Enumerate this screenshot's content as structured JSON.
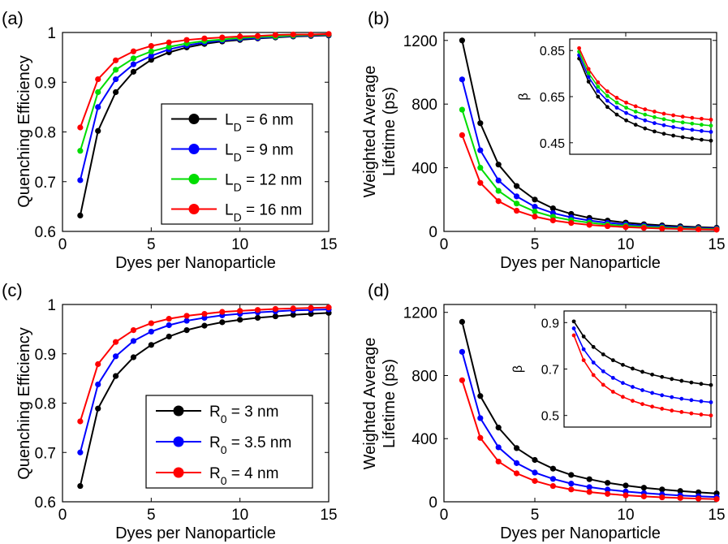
{
  "chart_data": [
    {
      "type": "line",
      "panel_label": "(a)",
      "xlabel": "Dyes per Nanoparticle",
      "ylabel_lines": [
        "Quenching Efficiency"
      ],
      "xlim": [
        0,
        15
      ],
      "ylim": [
        0.6,
        1
      ],
      "xticks": [
        0,
        5,
        10,
        15
      ],
      "xtick_labels": [
        "0",
        "5",
        "10",
        "15"
      ],
      "yticks": [
        0.6,
        0.7,
        0.8,
        0.9,
        1
      ],
      "ytick_labels": [
        "0.6",
        "0.7",
        "0.8",
        "0.9",
        "1"
      ],
      "legend_position": "center-right",
      "x": [
        1,
        2,
        3,
        4,
        5,
        6,
        7,
        8,
        9,
        10,
        11,
        12,
        13,
        14,
        15
      ],
      "series": [
        {
          "name": "L_D = 6 nm",
          "label_main": "L",
          "label_sub": "D",
          "label_rest": " = 6 nm",
          "color": "#000000",
          "values": [
            0.632,
            0.802,
            0.88,
            0.921,
            0.945,
            0.96,
            0.97,
            0.977,
            0.982,
            0.985,
            0.988,
            0.99,
            0.992,
            0.993,
            0.994
          ]
        },
        {
          "name": "L_D = 9 nm",
          "label_main": "L",
          "label_sub": "D",
          "label_rest": " = 9 nm",
          "color": "#0000ff",
          "values": [
            0.703,
            0.85,
            0.906,
            0.936,
            0.953,
            0.966,
            0.974,
            0.98,
            0.984,
            0.987,
            0.989,
            0.991,
            0.993,
            0.994,
            0.995
          ]
        },
        {
          "name": "L_D = 12 nm",
          "label_main": "L",
          "label_sub": "D",
          "label_rest": " = 12 nm",
          "color": "#00dd00",
          "values": [
            0.762,
            0.88,
            0.925,
            0.948,
            0.962,
            0.971,
            0.978,
            0.983,
            0.986,
            0.989,
            0.991,
            0.992,
            0.994,
            0.995,
            0.996
          ]
        },
        {
          "name": "L_D = 16 nm",
          "label_main": "L",
          "label_sub": "D",
          "label_rest": " = 16 nm",
          "color": "#ff0000",
          "values": [
            0.809,
            0.906,
            0.944,
            0.962,
            0.973,
            0.98,
            0.985,
            0.988,
            0.99,
            0.992,
            0.993,
            0.995,
            0.996,
            0.996,
            0.997
          ]
        }
      ]
    },
    {
      "type": "line",
      "panel_label": "(b)",
      "xlabel": "Dyes per Nanoparticle",
      "ylabel_lines": [
        "Weighted Average",
        "Lifetime (ps)"
      ],
      "xlim": [
        0,
        15
      ],
      "ylim": [
        0,
        1250
      ],
      "xticks": [
        0,
        5,
        10,
        15
      ],
      "xtick_labels": [
        "0",
        "5",
        "10",
        "15"
      ],
      "yticks": [
        0,
        400,
        800,
        1200
      ],
      "ytick_labels": [
        "0",
        "400",
        "800",
        "1200"
      ],
      "x": [
        1,
        2,
        3,
        4,
        5,
        6,
        7,
        8,
        9,
        10,
        11,
        12,
        13,
        14,
        15
      ],
      "series": [
        {
          "name": "L_D = 6 nm",
          "color": "#000000",
          "values": [
            1200,
            680,
            420,
            285,
            200,
            145,
            110,
            85,
            68,
            55,
            45,
            38,
            32,
            27,
            23
          ]
        },
        {
          "name": "L_D = 9 nm",
          "color": "#0000ff",
          "values": [
            955,
            510,
            320,
            220,
            155,
            115,
            88,
            68,
            54,
            44,
            36,
            30,
            25,
            21,
            18
          ]
        },
        {
          "name": "L_D = 12 nm",
          "color": "#00dd00",
          "values": [
            765,
            400,
            255,
            175,
            125,
            92,
            70,
            55,
            43,
            35,
            29,
            24,
            20,
            17,
            14
          ]
        },
        {
          "name": "L_D = 16 nm",
          "color": "#ff0000",
          "values": [
            605,
            305,
            190,
            130,
            93,
            69,
            53,
            41,
            33,
            27,
            22,
            18,
            15,
            13,
            11
          ]
        }
      ],
      "inset": {
        "ylabel": "β",
        "xlim": [
          0,
          15
        ],
        "ylim": [
          0.4,
          0.9
        ],
        "yticks": [
          0.45,
          0.65,
          0.85
        ],
        "ytick_labels": [
          "0.45",
          "0.65",
          "0.85"
        ],
        "x": [
          1,
          2,
          3,
          4,
          5,
          6,
          7,
          8,
          9,
          10,
          11,
          12,
          13,
          14,
          15
        ],
        "series": [
          {
            "name": "L_D = 6 nm",
            "color": "#000000",
            "values": [
              0.815,
              0.715,
              0.65,
              0.605,
              0.572,
              0.547,
              0.528,
              0.512,
              0.499,
              0.489,
              0.481,
              0.474,
              0.468,
              0.463,
              0.459
            ]
          },
          {
            "name": "L_D = 9 nm",
            "color": "#0000ff",
            "values": [
              0.83,
              0.735,
              0.674,
              0.632,
              0.602,
              0.579,
              0.561,
              0.547,
              0.535,
              0.526,
              0.518,
              0.511,
              0.506,
              0.501,
              0.497
            ]
          },
          {
            "name": "L_D = 12 nm",
            "color": "#00dd00",
            "values": [
              0.845,
              0.752,
              0.693,
              0.653,
              0.624,
              0.602,
              0.585,
              0.572,
              0.561,
              0.552,
              0.544,
              0.538,
              0.533,
              0.528,
              0.524
            ]
          },
          {
            "name": "L_D = 16 nm",
            "color": "#ff0000",
            "values": [
              0.86,
              0.77,
              0.712,
              0.673,
              0.645,
              0.624,
              0.608,
              0.595,
              0.585,
              0.576,
              0.569,
              0.563,
              0.558,
              0.554,
              0.55
            ]
          }
        ]
      }
    },
    {
      "type": "line",
      "panel_label": "(c)",
      "xlabel": "Dyes per Nanoparticle",
      "ylabel_lines": [
        "Quenching Efficiency"
      ],
      "xlim": [
        0,
        15
      ],
      "ylim": [
        0.6,
        1
      ],
      "xticks": [
        0,
        5,
        10,
        15
      ],
      "xtick_labels": [
        "0",
        "5",
        "10",
        "15"
      ],
      "yticks": [
        0.6,
        0.7,
        0.8,
        0.9,
        1
      ],
      "ytick_labels": [
        "0.6",
        "0.7",
        "0.8",
        "0.9",
        "1"
      ],
      "legend_position": "bottom-right",
      "x": [
        1,
        2,
        3,
        4,
        5,
        6,
        7,
        8,
        9,
        10,
        11,
        12,
        13,
        14,
        15
      ],
      "series": [
        {
          "name": "R_0 = 3 nm",
          "label_main": "R",
          "label_sub": "0",
          "label_rest": " = 3 nm",
          "color": "#000000",
          "values": [
            0.632,
            0.789,
            0.855,
            0.893,
            0.918,
            0.935,
            0.948,
            0.957,
            0.964,
            0.969,
            0.973,
            0.976,
            0.979,
            0.981,
            0.983
          ]
        },
        {
          "name": "R_0 = 3.5 nm",
          "label_main": "R",
          "label_sub": "0",
          "label_rest": " = 3.5 nm",
          "color": "#0000ff",
          "values": [
            0.7,
            0.838,
            0.895,
            0.926,
            0.945,
            0.958,
            0.967,
            0.973,
            0.978,
            0.981,
            0.984,
            0.986,
            0.988,
            0.989,
            0.99
          ]
        },
        {
          "name": "R_0 = 4 nm",
          "label_main": "R",
          "label_sub": "0",
          "label_rest": " = 4 nm",
          "color": "#ff0000",
          "values": [
            0.763,
            0.879,
            0.924,
            0.948,
            0.962,
            0.971,
            0.977,
            0.981,
            0.985,
            0.987,
            0.989,
            0.991,
            0.992,
            0.993,
            0.994
          ]
        }
      ]
    },
    {
      "type": "line",
      "panel_label": "(d)",
      "xlabel": "Dyes per Nanoparticle",
      "ylabel_lines": [
        "Weighted Average",
        "Lifetime (ps)"
      ],
      "xlim": [
        0,
        15
      ],
      "ylim": [
        0,
        1250
      ],
      "xticks": [
        0,
        5,
        10,
        15
      ],
      "xtick_labels": [
        "0",
        "5",
        "10",
        "15"
      ],
      "yticks": [
        0,
        400,
        800,
        1200
      ],
      "ytick_labels": [
        "0",
        "400",
        "800",
        "1200"
      ],
      "x": [
        1,
        2,
        3,
        4,
        5,
        6,
        7,
        8,
        9,
        10,
        11,
        12,
        13,
        14,
        15
      ],
      "series": [
        {
          "name": "R_0 = 3 nm",
          "color": "#000000",
          "values": [
            1140,
            670,
            470,
            340,
            265,
            210,
            170,
            143,
            120,
            103,
            89,
            78,
            68,
            60,
            53
          ]
        },
        {
          "name": "R_0 = 3.5 nm",
          "color": "#0000ff",
          "values": [
            950,
            530,
            345,
            245,
            185,
            145,
            115,
            93,
            77,
            65,
            55,
            47,
            40,
            35,
            30
          ]
        },
        {
          "name": "R_0 = 4 nm",
          "color": "#ff0000",
          "values": [
            770,
            405,
            255,
            180,
            132,
            100,
            78,
            62,
            50,
            41,
            34,
            28,
            24,
            20,
            17
          ]
        }
      ],
      "inset": {
        "ylabel": "β",
        "xlim": [
          0,
          15
        ],
        "ylim": [
          0.45,
          0.95
        ],
        "yticks": [
          0.5,
          0.7,
          0.9
        ],
        "ytick_labels": [
          "0.5",
          "0.7",
          "0.9"
        ],
        "x": [
          1,
          2,
          3,
          4,
          5,
          6,
          7,
          8,
          9,
          10,
          11,
          12,
          13,
          14,
          15
        ],
        "series": [
          {
            "name": "R_0 = 3 nm",
            "color": "#000000",
            "values": [
              0.905,
              0.84,
              0.795,
              0.763,
              0.738,
              0.718,
              0.702,
              0.688,
              0.676,
              0.666,
              0.657,
              0.649,
              0.642,
              0.636,
              0.631
            ]
          },
          {
            "name": "R_0 = 3.5 nm",
            "color": "#0000ff",
            "values": [
              0.875,
              0.785,
              0.728,
              0.69,
              0.662,
              0.64,
              0.623,
              0.609,
              0.597,
              0.587,
              0.579,
              0.572,
              0.566,
              0.561,
              0.557
            ]
          },
          {
            "name": "R_0 = 4 nm",
            "color": "#ff0000",
            "values": [
              0.845,
              0.738,
              0.674,
              0.632,
              0.602,
              0.58,
              0.563,
              0.549,
              0.538,
              0.529,
              0.521,
              0.515,
              0.509,
              0.504,
              0.5
            ]
          }
        ]
      }
    }
  ]
}
